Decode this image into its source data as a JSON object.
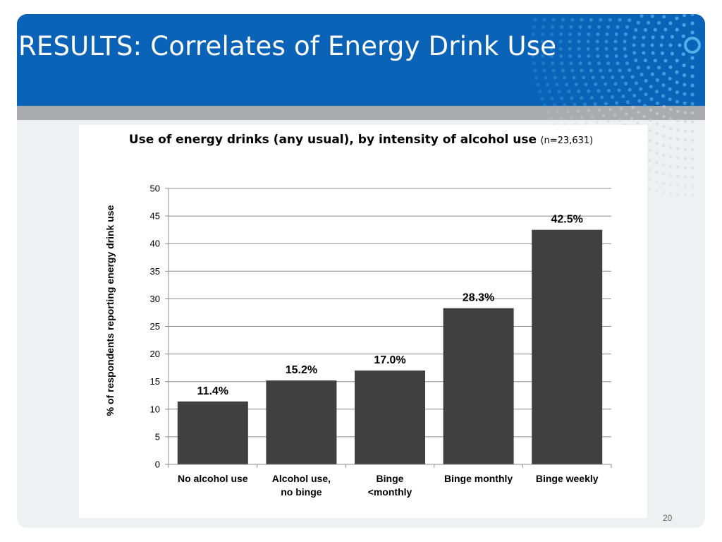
{
  "slide": {
    "title": "RESULTS: Correlates of Energy Drink Use",
    "page_number": "20",
    "colors": {
      "header": "#0b63b8",
      "stripe": "#a8acae",
      "frame": "#eef0f1",
      "bar": "#404040"
    }
  },
  "chart_data": {
    "type": "bar",
    "title": "Use of energy drinks (any usual), by intensity of alcohol use",
    "subtitle": "(n=23,631)",
    "ylabel": "% of respondents reporting energy drink use",
    "xlabel": "",
    "ylim": [
      0,
      50
    ],
    "yticks": [
      "0",
      "5",
      "10",
      "15",
      "20",
      "25",
      "30",
      "35",
      "40",
      "45",
      "50"
    ],
    "grid": true,
    "legend": false,
    "categories": [
      [
        "No alcohol use"
      ],
      [
        "Alcohol use,",
        "no binge"
      ],
      [
        "Binge",
        "<monthly"
      ],
      [
        "Binge monthly"
      ],
      [
        "Binge weekly"
      ]
    ],
    "values": [
      11.4,
      15.2,
      17.0,
      28.3,
      42.5
    ],
    "data_labels": [
      "11.4%",
      "15.2%",
      "17.0%",
      "28.3%",
      "42.5%"
    ]
  }
}
